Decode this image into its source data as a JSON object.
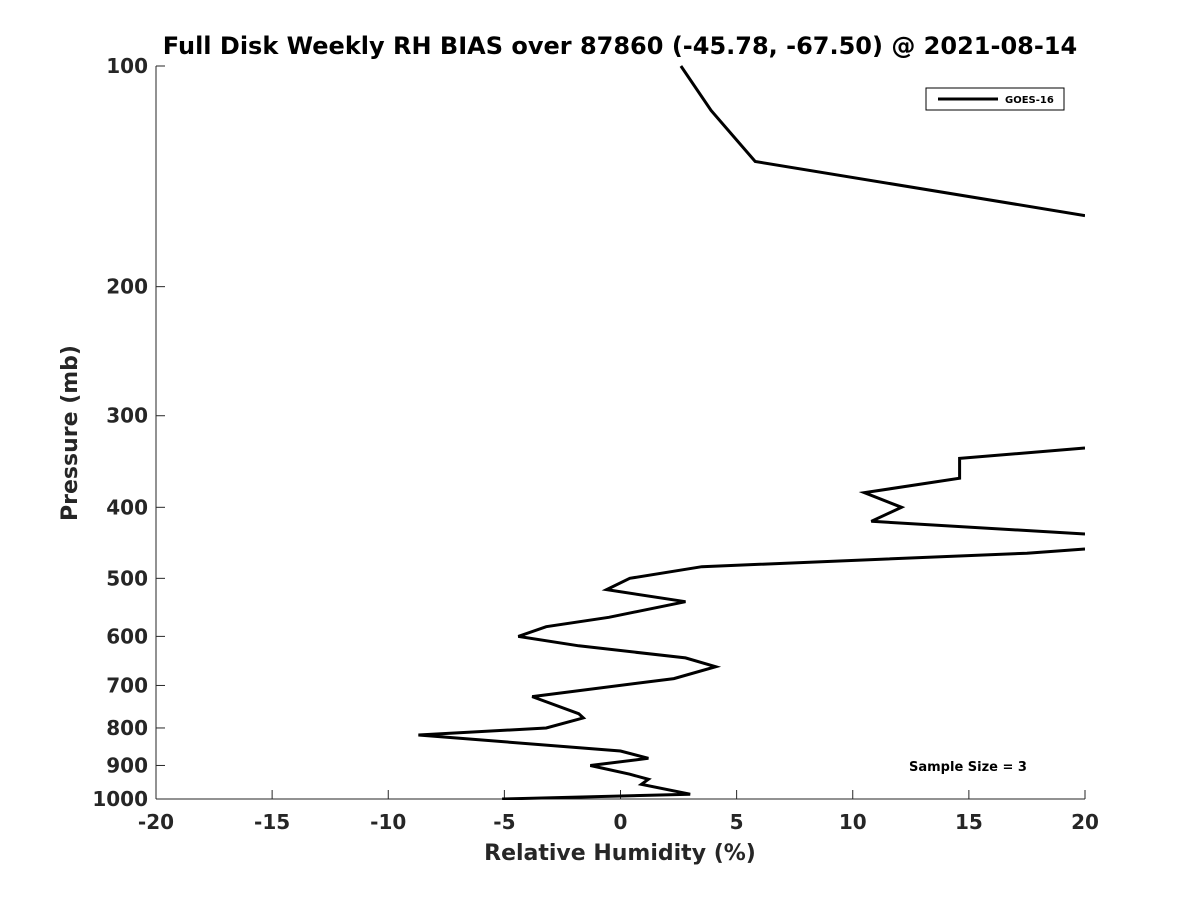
{
  "chart_data": {
    "type": "line",
    "title": "Full Disk Weekly RH BIAS over 87860 (-45.78, -67.50) @ 2021-08-14",
    "xlabel": "Relative Humidity (%)",
    "ylabel": "Pressure (mb)",
    "xlim": [
      -20,
      20
    ],
    "ylim": [
      100,
      1000
    ],
    "y_scale": "log",
    "y_reversed": true,
    "xticks": [
      -20,
      -15,
      -10,
      -5,
      0,
      5,
      10,
      15,
      20
    ],
    "xtick_labels": [
      "-20",
      "-15",
      "-10",
      "-5",
      "0",
      "5",
      "10",
      "15",
      "20"
    ],
    "yticks": [
      100,
      200,
      300,
      400,
      500,
      600,
      700,
      800,
      900,
      1000
    ],
    "ytick_labels": [
      "100",
      "200",
      "300",
      "400",
      "500",
      "600",
      "700",
      "800",
      "900",
      "1000"
    ],
    "grid": false,
    "legend_position": "top-right",
    "series": [
      {
        "name": "GOES-16",
        "color": "#000000",
        "segments": [
          [
            {
              "x": 2.6,
              "y": 100
            },
            {
              "x": 3.9,
              "y": 115
            },
            {
              "x": 5.8,
              "y": 135
            },
            {
              "x": 20.0,
              "y": 160
            }
          ],
          [
            {
              "x": 20.0,
              "y": 332
            },
            {
              "x": 14.6,
              "y": 343
            },
            {
              "x": 14.6,
              "y": 365
            },
            {
              "x": 10.5,
              "y": 382
            },
            {
              "x": 12.1,
              "y": 400
            },
            {
              "x": 10.8,
              "y": 418
            },
            {
              "x": 20.0,
              "y": 435
            }
          ],
          [
            {
              "x": 20.0,
              "y": 456
            },
            {
              "x": 17.5,
              "y": 462
            },
            {
              "x": 3.5,
              "y": 482
            },
            {
              "x": 0.4,
              "y": 500
            },
            {
              "x": -0.6,
              "y": 518
            },
            {
              "x": 2.8,
              "y": 538
            },
            {
              "x": -0.5,
              "y": 565
            },
            {
              "x": -3.2,
              "y": 582
            },
            {
              "x": -4.4,
              "y": 600
            },
            {
              "x": -1.8,
              "y": 618
            },
            {
              "x": 2.8,
              "y": 642
            },
            {
              "x": 4.1,
              "y": 660
            },
            {
              "x": 2.3,
              "y": 685
            },
            {
              "x": -3.8,
              "y": 725
            },
            {
              "x": -1.8,
              "y": 765
            },
            {
              "x": -1.6,
              "y": 775
            },
            {
              "x": -3.2,
              "y": 800
            },
            {
              "x": -8.7,
              "y": 818
            },
            {
              "x": 0.0,
              "y": 860
            },
            {
              "x": 1.2,
              "y": 880
            },
            {
              "x": -1.3,
              "y": 900
            },
            {
              "x": 0.4,
              "y": 925
            },
            {
              "x": 1.2,
              "y": 940
            },
            {
              "x": 0.9,
              "y": 955
            },
            {
              "x": 3.0,
              "y": 985
            },
            {
              "x": -5.1,
              "y": 1000
            }
          ]
        ]
      }
    ],
    "annotations": [
      {
        "text": "Sample Size = 3",
        "position": "bottom-right"
      }
    ]
  },
  "legend": {
    "entries": [
      "GOES-16"
    ]
  }
}
